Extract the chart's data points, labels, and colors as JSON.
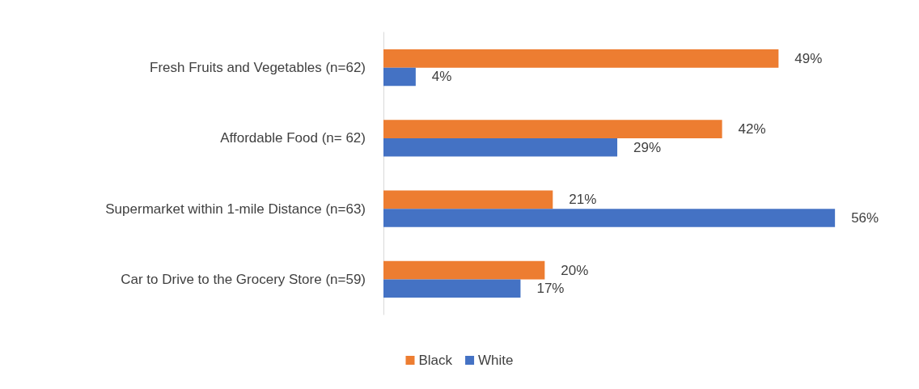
{
  "chart_data": {
    "type": "bar",
    "orientation": "horizontal",
    "categories": [
      "Fresh Fruits and Vegetables (n=62)",
      "Affordable Food (n= 62)",
      "Supermarket within 1-mile Distance (n=63)",
      "Car to Drive to the Grocery Store (n=59)"
    ],
    "series": [
      {
        "name": "Black",
        "color": "#ed7d31",
        "values": [
          49,
          42,
          21,
          20
        ],
        "value_labels": [
          "49%",
          "42%",
          "21%",
          "20%"
        ]
      },
      {
        "name": "White",
        "color": "#4472c4",
        "values": [
          4,
          29,
          56,
          17
        ],
        "value_labels": [
          "4%",
          "29%",
          "56%",
          "17%"
        ]
      }
    ],
    "legend": "bottom"
  }
}
